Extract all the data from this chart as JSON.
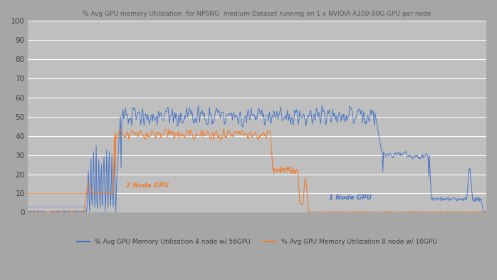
{
  "title": "% Avg GPU memory Utilization  for NPSNG  medium Dataset running on 1 x NVIDIA A100-80G GPU per node",
  "legend_blue": "% Avg GPU Memory Utilization 4 node w/ 56GPU",
  "legend_orange": "% Avg GPU Memory Utilization 8 node w/ 10GPU",
  "label_2node": "2 Node GPU",
  "label_1node": "1 Node GPU",
  "ylim": [
    0,
    100
  ],
  "yticks": [
    0,
    10,
    20,
    30,
    40,
    50,
    60,
    70,
    80,
    90,
    100
  ],
  "background_color": "#a6a6a6",
  "plot_bg_color": "#bfbfbf",
  "blue_color": "#4472c4",
  "orange_color": "#ed7d31",
  "grid_color": "#ffffff",
  "title_color": "#595959",
  "tick_color": "#404040",
  "label_2node_color": "#ed7d31",
  "label_1node_color": "#4472c4",
  "n_total": 700
}
